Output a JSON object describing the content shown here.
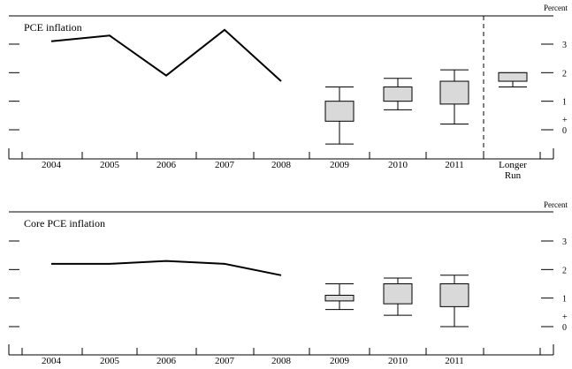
{
  "chart_data": [
    {
      "type": "line",
      "title": "PCE inflation",
      "unit_label": "Percent",
      "categories": [
        "2004",
        "2005",
        "2006",
        "2007",
        "2008",
        "2009",
        "2010",
        "2011",
        "Longer Run"
      ],
      "ylim": [
        -1,
        4
      ],
      "yticks": [
        0,
        1,
        2,
        3
      ],
      "ytick_labels": [
        "0",
        "1",
        "2",
        "3"
      ],
      "plus_sign": "+",
      "history": {
        "x": [
          "2004",
          "2005",
          "2006",
          "2007",
          "2008"
        ],
        "values": [
          3.1,
          3.3,
          1.9,
          3.5,
          1.7
        ]
      },
      "projections": [
        {
          "x": "2009",
          "low": -0.5,
          "box_low": 0.3,
          "box_high": 1.0,
          "high": 1.5
        },
        {
          "x": "2010",
          "low": 0.7,
          "box_low": 1.0,
          "box_high": 1.5,
          "high": 1.8
        },
        {
          "x": "2011",
          "low": 0.2,
          "box_low": 0.9,
          "box_high": 1.7,
          "high": 2.1
        },
        {
          "x": "Longer Run",
          "low": 1.5,
          "box_low": 1.7,
          "box_high": 2.0,
          "high": 2.0
        }
      ],
      "divider_after": "2011"
    },
    {
      "type": "line",
      "title": "Core PCE inflation",
      "unit_label": "Percent",
      "categories": [
        "2004",
        "2005",
        "2006",
        "2007",
        "2008",
        "2009",
        "2010",
        "2011"
      ],
      "ylim": [
        -1,
        4
      ],
      "yticks": [
        0,
        1,
        2,
        3
      ],
      "ytick_labels": [
        "0",
        "1",
        "2",
        "3"
      ],
      "plus_sign": "+",
      "history": {
        "x": [
          "2004",
          "2005",
          "2006",
          "2007",
          "2008"
        ],
        "values": [
          2.2,
          2.2,
          2.3,
          2.2,
          1.8
        ]
      },
      "projections": [
        {
          "x": "2009",
          "low": 0.6,
          "box_low": 0.9,
          "box_high": 1.1,
          "high": 1.5
        },
        {
          "x": "2010",
          "low": 0.4,
          "box_low": 0.8,
          "box_high": 1.5,
          "high": 1.7
        },
        {
          "x": "2011",
          "low": 0.0,
          "box_low": 0.7,
          "box_high": 1.5,
          "high": 1.8
        }
      ]
    }
  ]
}
